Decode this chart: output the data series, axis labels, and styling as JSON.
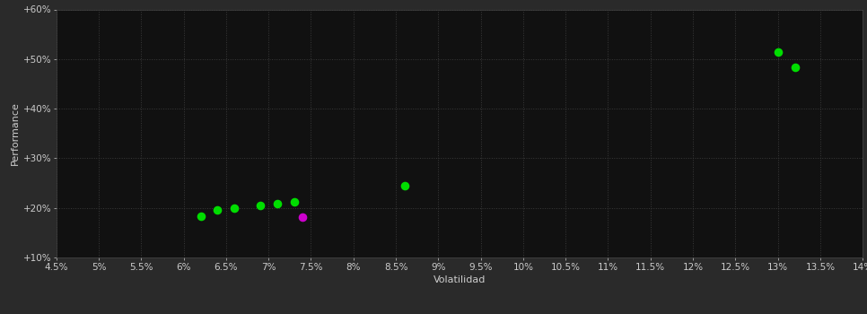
{
  "background_color": "#2a2a2a",
  "plot_bg_color": "#111111",
  "grid_color": "#3a3a3a",
  "text_color": "#cccccc",
  "xlabel": "Volatilidad",
  "ylabel": "Performance",
  "xlim": [
    0.045,
    0.14
  ],
  "ylim": [
    0.1,
    0.6
  ],
  "xticks": [
    0.045,
    0.05,
    0.055,
    0.06,
    0.065,
    0.07,
    0.075,
    0.08,
    0.085,
    0.09,
    0.095,
    0.1,
    0.105,
    0.11,
    0.115,
    0.12,
    0.125,
    0.13,
    0.135,
    0.14
  ],
  "yticks": [
    0.1,
    0.2,
    0.3,
    0.4,
    0.5,
    0.6
  ],
  "green_points": [
    [
      0.062,
      0.183
    ],
    [
      0.064,
      0.196
    ],
    [
      0.066,
      0.2
    ],
    [
      0.069,
      0.205
    ],
    [
      0.071,
      0.208
    ],
    [
      0.073,
      0.213
    ],
    [
      0.086,
      0.245
    ],
    [
      0.13,
      0.515
    ],
    [
      0.132,
      0.483
    ]
  ],
  "magenta_points": [
    [
      0.074,
      0.182
    ]
  ],
  "green_color": "#00dd00",
  "magenta_color": "#cc00cc",
  "marker_size": 35,
  "axis_fontsize": 8,
  "tick_fontsize": 7.5
}
